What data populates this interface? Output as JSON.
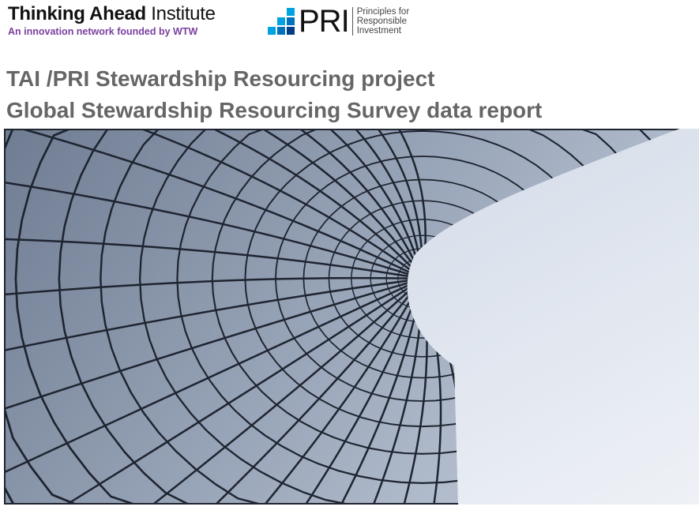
{
  "header": {
    "tai_logo": {
      "name_bold": "Thinking Ahead",
      "name_regular": "Institute",
      "tagline": "An innovation network founded by WTW"
    },
    "pri_logo": {
      "wordmark": "PRI",
      "tagline_lines": [
        "Principles for",
        "Responsible",
        "Investment"
      ],
      "colors": [
        "#00a3e0",
        "#0072bc",
        "#003f87"
      ]
    }
  },
  "title": {
    "line1": "TAI /PRI Stewardship Resourcing project",
    "line2": "Global Stewardship Resourcing Survey data report"
  },
  "cover_image": {
    "subject": "curved-glass-building-facade"
  }
}
